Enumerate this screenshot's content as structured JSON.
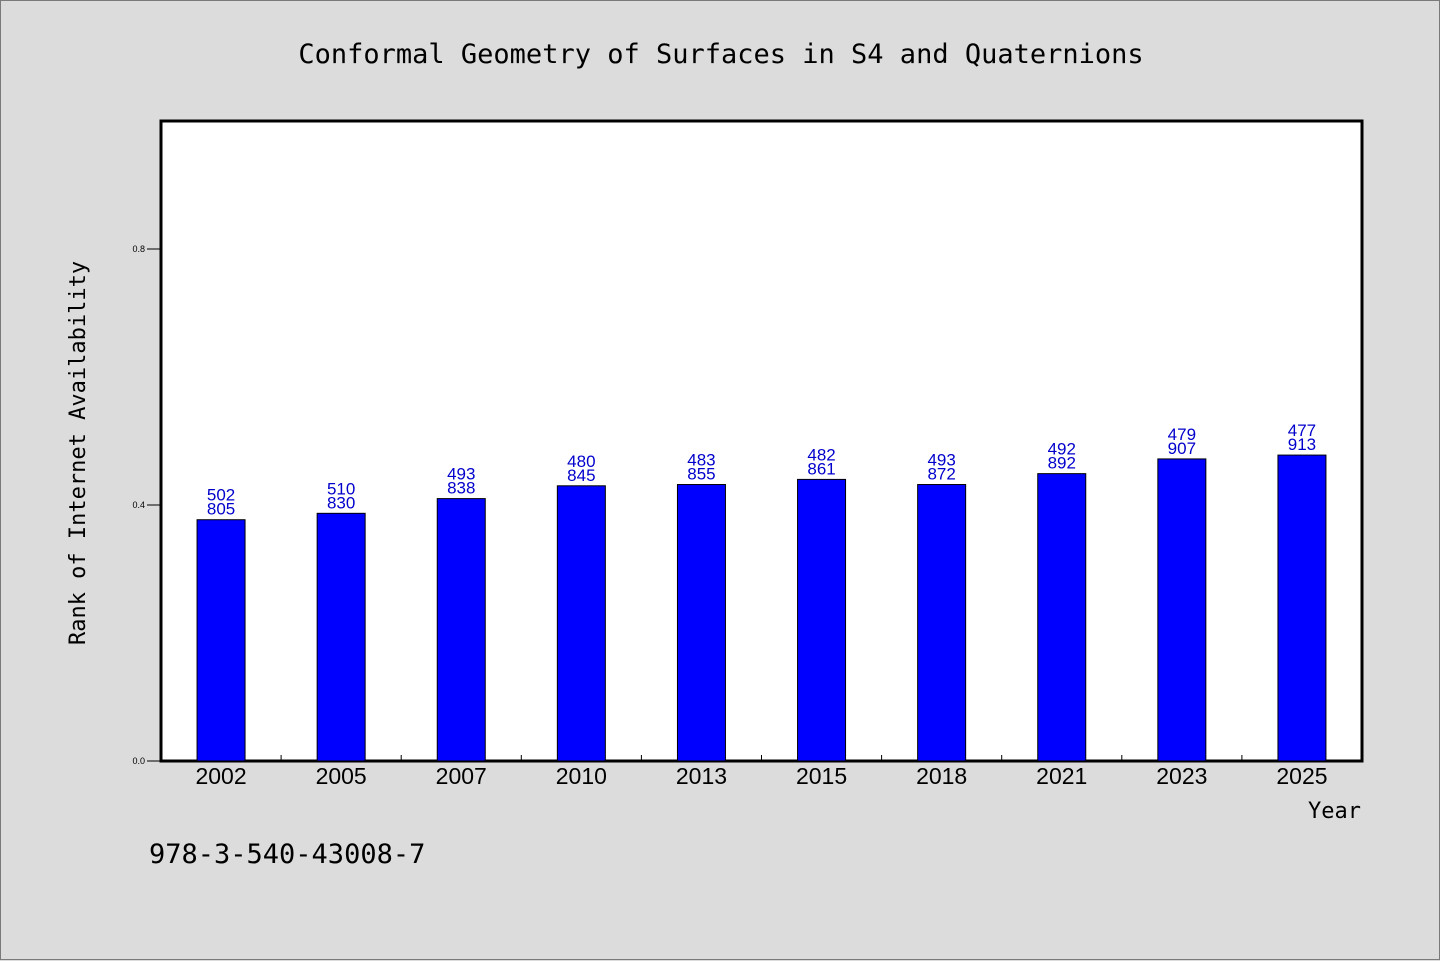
{
  "chart_data": {
    "type": "bar",
    "title": "Conformal Geometry of Surfaces in S4 and Quaternions",
    "xlabel": "Year",
    "ylabel": "Rank of Internet Availability",
    "categories": [
      "2002",
      "2005",
      "2007",
      "2010",
      "2013",
      "2015",
      "2018",
      "2021",
      "2023",
      "2025"
    ],
    "series": [
      {
        "values": [
          0.377,
          0.387,
          0.41,
          0.43,
          0.432,
          0.44,
          0.432,
          0.449,
          0.472,
          0.478
        ],
        "color": "#0000ff"
      }
    ],
    "data_labels": [
      [
        "502",
        "805"
      ],
      [
        "510",
        "830"
      ],
      [
        "493",
        "838"
      ],
      [
        "480",
        "845"
      ],
      [
        "483",
        "855"
      ],
      [
        "482",
        "861"
      ],
      [
        "493",
        "872"
      ],
      [
        "492",
        "892"
      ],
      [
        "479",
        "907"
      ],
      [
        "477",
        "913"
      ]
    ],
    "yticks": [
      "0.0",
      "0.4",
      "0.8"
    ],
    "ylim": [
      0,
      1.0
    ],
    "grid": false,
    "label_color": "#0000cc"
  },
  "footnote": "978-3-540-43008-7"
}
